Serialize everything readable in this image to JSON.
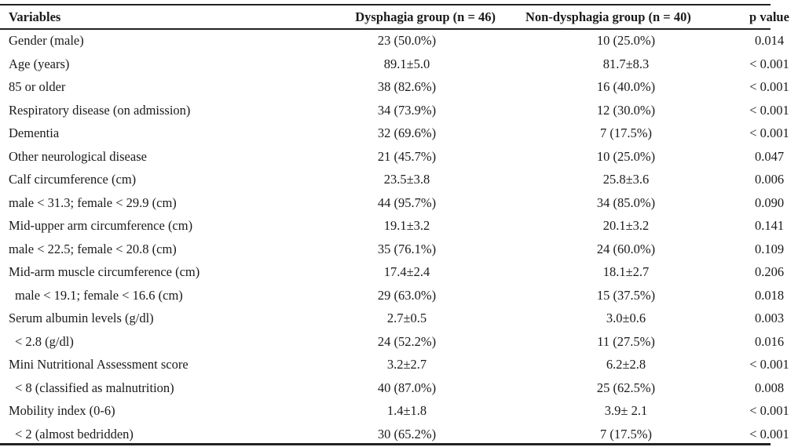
{
  "table": {
    "headers": {
      "variables": "Variables",
      "dysphagia": "Dysphagia group (n = 46)",
      "non_dysphagia": "Non-dysphagia group (n = 40)",
      "p_value": "p value"
    },
    "rows": [
      {
        "variable": "Gender (male)",
        "dysphagia": "23 (50.0%)",
        "non_dysphagia": "10 (25.0%)",
        "p": "0.014"
      },
      {
        "variable": "Age (years)",
        "dysphagia": "89.1±5.0",
        "non_dysphagia": "81.7±8.3",
        "p": "< 0.001"
      },
      {
        "variable": "85 or older",
        "dysphagia": "38 (82.6%)",
        "non_dysphagia": "16 (40.0%)",
        "p": "< 0.001"
      },
      {
        "variable": "Respiratory disease (on admission)",
        "dysphagia": "34 (73.9%)",
        "non_dysphagia": "12 (30.0%)",
        "p": "< 0.001"
      },
      {
        "variable": "Dementia",
        "dysphagia": "32 (69.6%)",
        "non_dysphagia": "7 (17.5%)",
        "p": "< 0.001"
      },
      {
        "variable": "Other neurological disease",
        "dysphagia": "21 (45.7%)",
        "non_dysphagia": "10 (25.0%)",
        "p": "0.047"
      },
      {
        "variable": "Calf circumference (cm)",
        "dysphagia": "23.5±3.8",
        "non_dysphagia": "25.8±3.6",
        "p": "0.006"
      },
      {
        "variable": "male < 31.3; female < 29.9 (cm)",
        "dysphagia": "44 (95.7%)",
        "non_dysphagia": "34 (85.0%)",
        "p": "0.090"
      },
      {
        "variable": "Mid-upper arm circumference (cm)",
        "dysphagia": "19.1±3.2",
        "non_dysphagia": "20.1±3.2",
        "p": "0.141"
      },
      {
        "variable": "male < 22.5; female < 20.8 (cm)",
        "dysphagia": "35 (76.1%)",
        "non_dysphagia": "24 (60.0%)",
        "p": "0.109"
      },
      {
        "variable": "Mid-arm muscle circumference (cm)",
        "dysphagia": "17.4±2.4",
        "non_dysphagia": "18.1±2.7",
        "p": "0.206"
      },
      {
        "variable": "male < 19.1; female < 16.6 (cm)",
        "dysphagia": "29 (63.0%)",
        "non_dysphagia": "15 (37.5%)",
        "p": "0.018",
        "indent": true
      },
      {
        "variable": "Serum albumin levels (g/dl)",
        "dysphagia": "2.7±0.5",
        "non_dysphagia": "3.0±0.6",
        "p": "0.003"
      },
      {
        "variable": "< 2.8 (g/dl)",
        "dysphagia": "24 (52.2%)",
        "non_dysphagia": "11 (27.5%)",
        "p": "0.016",
        "indent": true
      },
      {
        "variable": "Mini Nutritional Assessment score",
        "dysphagia": "3.2±2.7",
        "non_dysphagia": "6.2±2.8",
        "p": "< 0.001"
      },
      {
        "variable": "< 8 (classified as malnutrition)",
        "dysphagia": "40 (87.0%)",
        "non_dysphagia": "25 (62.5%)",
        "p": "0.008",
        "indent": true
      },
      {
        "variable": "Mobility index (0-6)",
        "dysphagia": "1.4±1.8",
        "non_dysphagia": "3.9± 2.1",
        "p": "< 0.001"
      },
      {
        "variable": "< 2 (almost bedridden)",
        "dysphagia": "30 (65.2%)",
        "non_dysphagia": "7 (17.5%)",
        "p": "< 0.001",
        "indent": true
      }
    ]
  }
}
